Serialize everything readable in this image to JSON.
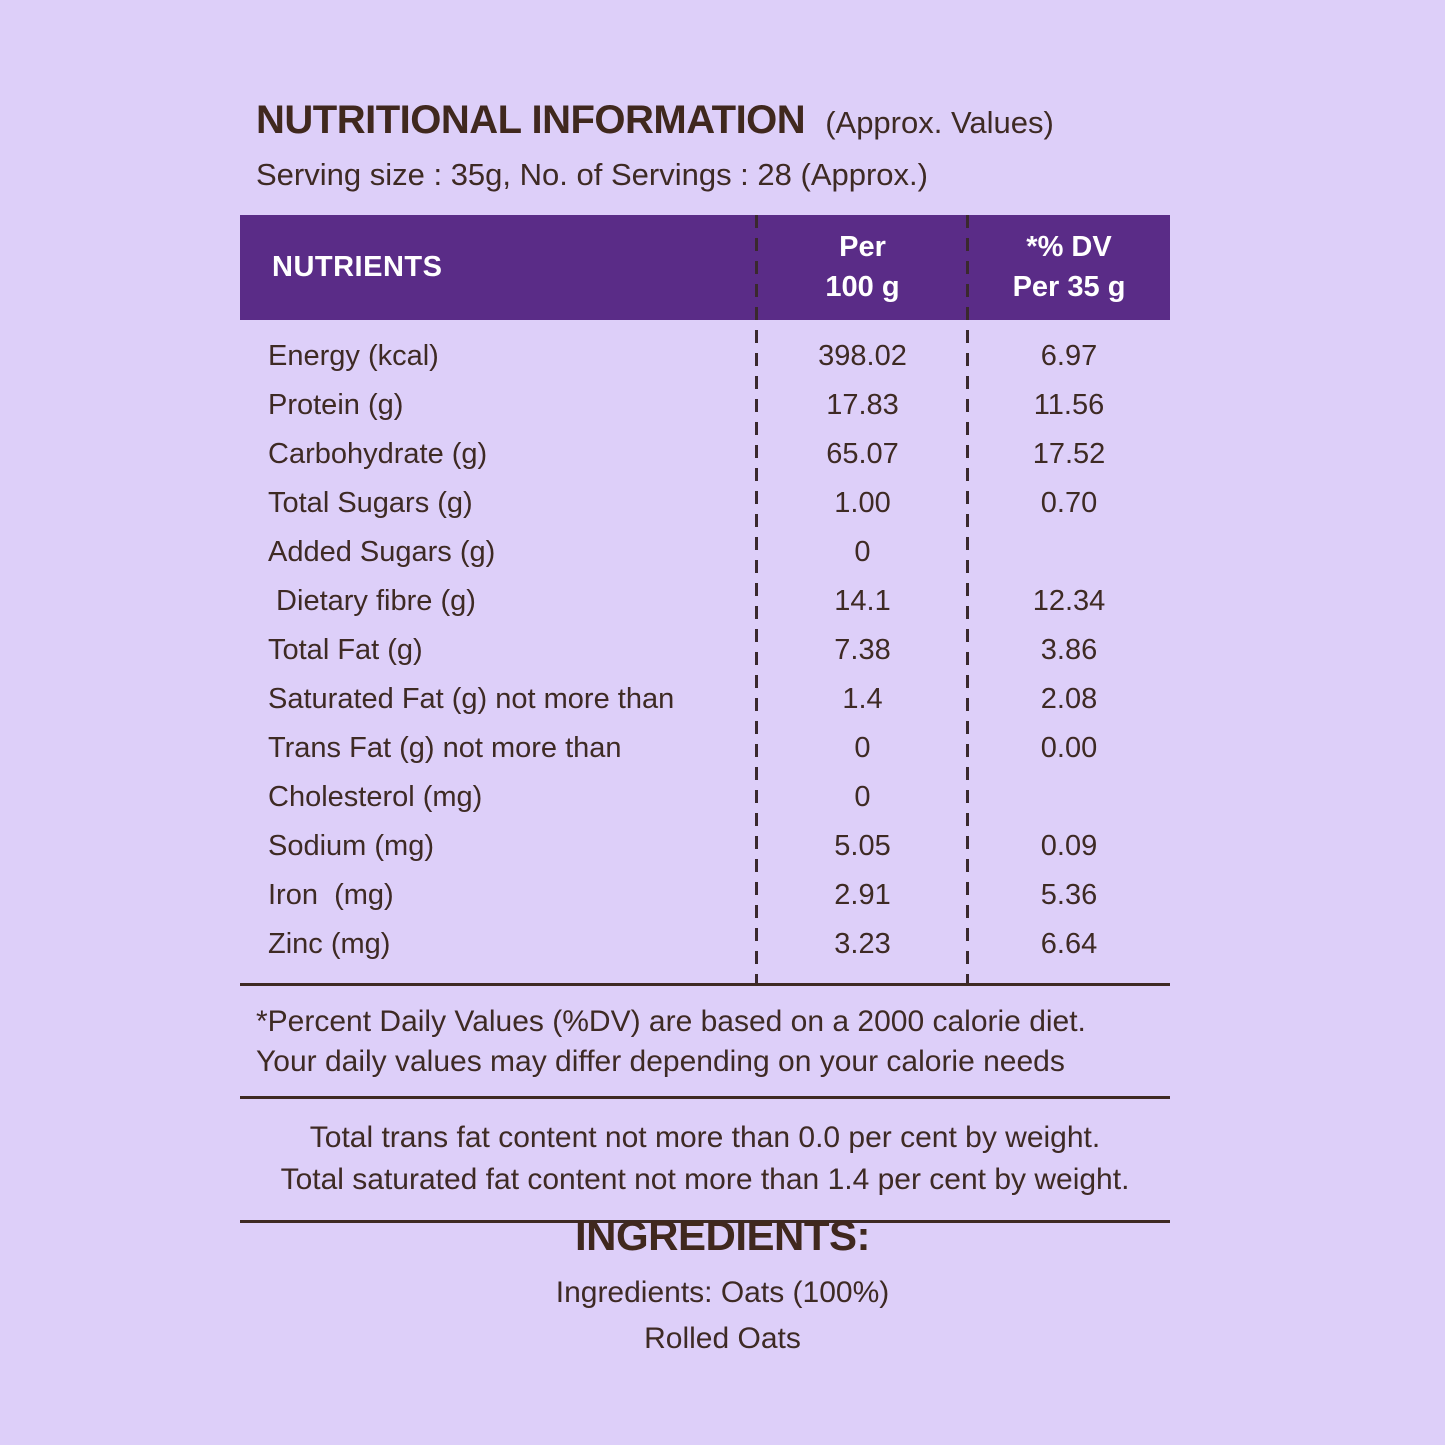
{
  "colors": {
    "background": "#ddcff9",
    "header_bg": "#5a2c87",
    "header_text": "#ffffff",
    "body_text": "#3e2a24",
    "dashed_divider": "#3a292e"
  },
  "title": {
    "main": "NUTRITIONAL INFORMATION",
    "suffix": "(Approx. Values)",
    "serving_line": "Serving size : 35g, No. of Servings : 28 (Approx.)"
  },
  "table": {
    "columns": {
      "nutrients": "NUTRIENTS",
      "per_100g": "Per\n100 g",
      "dv_per_35g": "*% DV\nPer 35 g"
    },
    "rows": [
      {
        "label": "Energy (kcal)",
        "per_100g": "398.02",
        "dv_per_35g": "6.97"
      },
      {
        "label": "Protein (g)",
        "per_100g": "17.83",
        "dv_per_35g": "11.56"
      },
      {
        "label": "Carbohydrate (g)",
        "per_100g": "65.07",
        "dv_per_35g": "17.52"
      },
      {
        "label": "Total Sugars (g)",
        "per_100g": "1.00",
        "dv_per_35g": "0.70"
      },
      {
        "label": "Added Sugars (g)",
        "per_100g": "0",
        "dv_per_35g": ""
      },
      {
        "label": " Dietary fibre (g)",
        "per_100g": "14.1",
        "dv_per_35g": "12.34"
      },
      {
        "label": "Total Fat (g)",
        "per_100g": "7.38",
        "dv_per_35g": "3.86"
      },
      {
        "label": "Saturated Fat (g) not more than",
        "per_100g": "1.4",
        "dv_per_35g": "2.08"
      },
      {
        "label": "Trans Fat (g) not more than",
        "per_100g": "0",
        "dv_per_35g": "0.00"
      },
      {
        "label": "Cholesterol (mg)",
        "per_100g": "0",
        "dv_per_35g": ""
      },
      {
        "label": "Sodium (mg)",
        "per_100g": "5.05",
        "dv_per_35g": "0.09"
      },
      {
        "label": "Iron  (mg)",
        "per_100g": "2.91",
        "dv_per_35g": "5.36"
      },
      {
        "label": "Zinc (mg)",
        "per_100g": "3.23",
        "dv_per_35g": "6.64"
      }
    ]
  },
  "notes": {
    "dv_line1": "*Percent Daily Values (%DV) are based on a 2000 calorie diet.",
    "dv_line2": "Your daily values may differ depending on your calorie needs",
    "fat_line1": "Total trans fat content not more than 0.0 per cent by weight.",
    "fat_line2": "Total saturated fat content not more than 1.4 per cent by weight."
  },
  "ingredients": {
    "heading": "INGREDIENTS:",
    "line1": "Ingredients: Oats (100%)",
    "line2": "Rolled Oats"
  }
}
